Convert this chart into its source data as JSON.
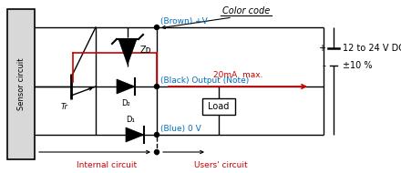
{
  "bg_color": "#ffffff",
  "line_color": "#000000",
  "red_color": "#cc0000",
  "blue_text_color": "#0070c0",
  "sensor_label": "Sensor circuit",
  "color_code_text": "Color code",
  "brown_label": "(Brown) +V",
  "black_label": "(Black) Output (Note)",
  "blue_label": "(Blue) 0 V",
  "ma_label": "20mA  max.",
  "load_label": "Load",
  "voltage_label1": "12 to 24 V DC",
  "voltage_label2": "±10 %",
  "internal_label": "Internal circuit",
  "users_label": "Users' circuit",
  "tr_label": "Tr",
  "zd_label": "Zᴅ",
  "d1_label": "D₁",
  "d2_label": "D₂",
  "plus_label": "+",
  "minus_label": "-"
}
